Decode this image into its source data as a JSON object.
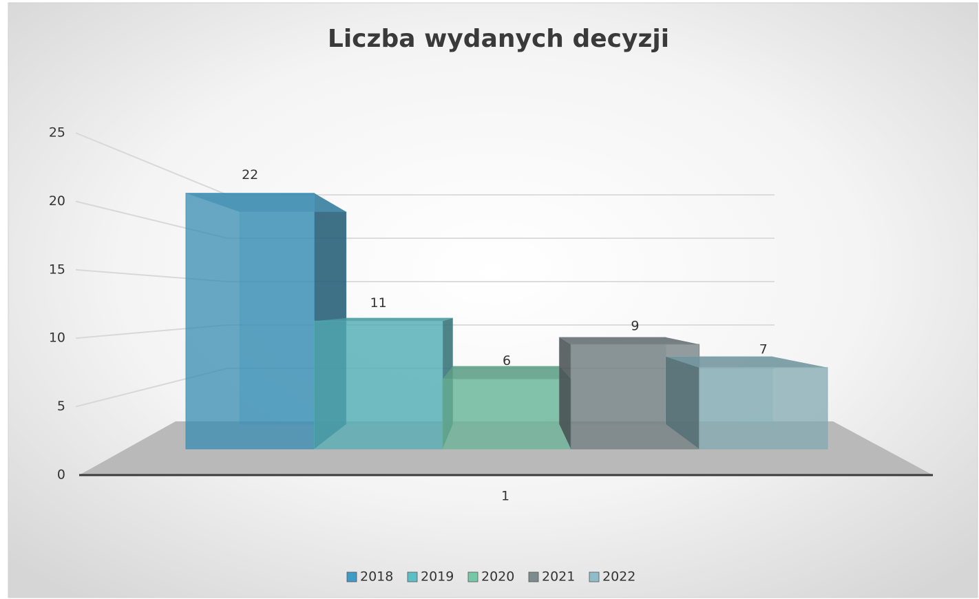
{
  "chart_data": {
    "type": "bar3d",
    "title": "Liczba wydanych decyzji",
    "categories": [
      "1"
    ],
    "series": [
      {
        "name": "2018",
        "color": "#3d9bc6",
        "values": [
          22
        ]
      },
      {
        "name": "2019",
        "color": "#5cbfc8",
        "values": [
          11
        ]
      },
      {
        "name": "2020",
        "color": "#74c7a8",
        "values": [
          6
        ]
      },
      {
        "name": "2021",
        "color": "#7c8b8e",
        "values": [
          9
        ]
      },
      {
        "name": "2022",
        "color": "#8fbcc6",
        "values": [
          7
        ]
      }
    ],
    "ylim": [
      0,
      25
    ],
    "yticks": [
      0,
      5,
      10,
      15,
      20,
      25
    ],
    "grid": true,
    "legend": "bottom"
  }
}
